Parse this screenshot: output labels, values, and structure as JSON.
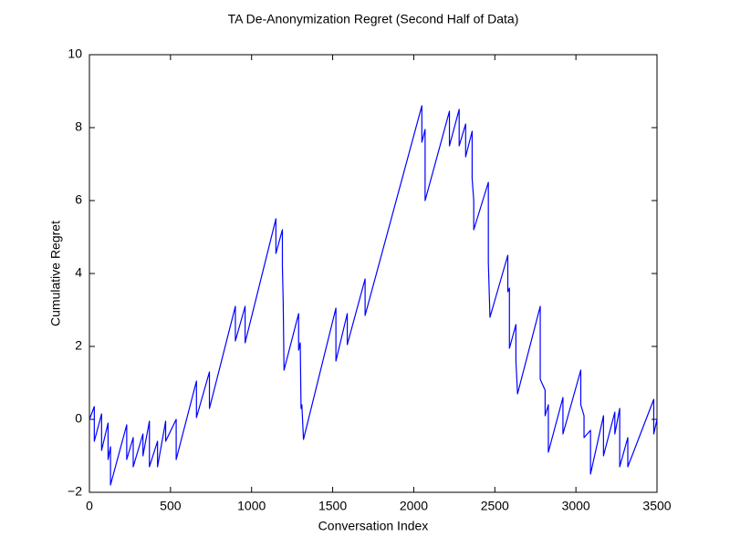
{
  "chart_data": {
    "type": "line",
    "title": "TA De-Anonymization Regret (Second Half of Data)",
    "xlabel": "Conversation Index",
    "ylabel": "Cumulative Regret",
    "x": [
      0,
      30,
      30,
      75,
      75,
      115,
      115,
      130,
      130,
      230,
      230,
      270,
      270,
      330,
      330,
      370,
      370,
      420,
      420,
      470,
      470,
      535,
      535,
      660,
      660,
      740,
      740,
      900,
      900,
      960,
      960,
      1150,
      1150,
      1190,
      1190,
      1195,
      1200,
      1290,
      1290,
      1300,
      1305,
      1310,
      1320,
      1520,
      1520,
      1590,
      1590,
      1700,
      1700,
      2050,
      2050,
      2070,
      2070,
      2220,
      2220,
      2280,
      2280,
      2320,
      2320,
      2360,
      2360,
      2370,
      2370,
      2460,
      2460,
      2470,
      2580,
      2580,
      2590,
      2590,
      2630,
      2630,
      2640,
      2780,
      2780,
      2810,
      2810,
      2830,
      2830,
      2920,
      2920,
      3030,
      3030,
      3050,
      3050,
      3090,
      3090,
      3170,
      3170,
      3240,
      3240,
      3270,
      3270,
      3320,
      3320,
      3480,
      3480,
      3500
    ],
    "series": [
      {
        "name": "Cumulative Regret",
        "color": "#0000ff",
        "values": [
          0,
          0.35,
          -0.6,
          0.15,
          -0.85,
          -0.1,
          -1.1,
          -0.75,
          -1.8,
          -0.15,
          -1.1,
          -0.5,
          -1.3,
          -0.4,
          -1.0,
          -0.05,
          -1.3,
          -0.6,
          -1.3,
          -0.05,
          -0.6,
          0.0,
          -1.1,
          1.05,
          0.05,
          1.3,
          0.3,
          3.1,
          2.15,
          3.1,
          2.1,
          5.5,
          4.55,
          5.2,
          4.2,
          3.2,
          1.35,
          2.9,
          1.9,
          2.1,
          0.3,
          0.4,
          -0.55,
          3.05,
          1.6,
          2.9,
          2.05,
          3.85,
          2.85,
          8.6,
          7.6,
          7.95,
          6.0,
          8.45,
          7.5,
          8.5,
          7.5,
          8.1,
          7.2,
          7.9,
          6.6,
          6.0,
          5.2,
          6.5,
          4.3,
          2.8,
          4.5,
          3.5,
          3.6,
          1.95,
          2.6,
          1.6,
          0.7,
          3.1,
          1.1,
          0.8,
          0.1,
          0.4,
          -0.9,
          0.6,
          -0.4,
          1.35,
          0.4,
          0.1,
          -0.5,
          -0.3,
          -1.5,
          0.1,
          -1.0,
          0.2,
          -0.4,
          0.3,
          -1.3,
          -0.5,
          -1.3,
          0.55,
          -0.4,
          0
        ]
      }
    ],
    "xlim": [
      0,
      3500
    ],
    "xticks": [
      0,
      500,
      1000,
      1500,
      2000,
      2500,
      3000,
      3500
    ],
    "ylim": [
      -2,
      10
    ],
    "yticks": [
      {
        "value": -2,
        "label": "−2"
      },
      0,
      2,
      4,
      6,
      8,
      10
    ],
    "grid": false
  }
}
